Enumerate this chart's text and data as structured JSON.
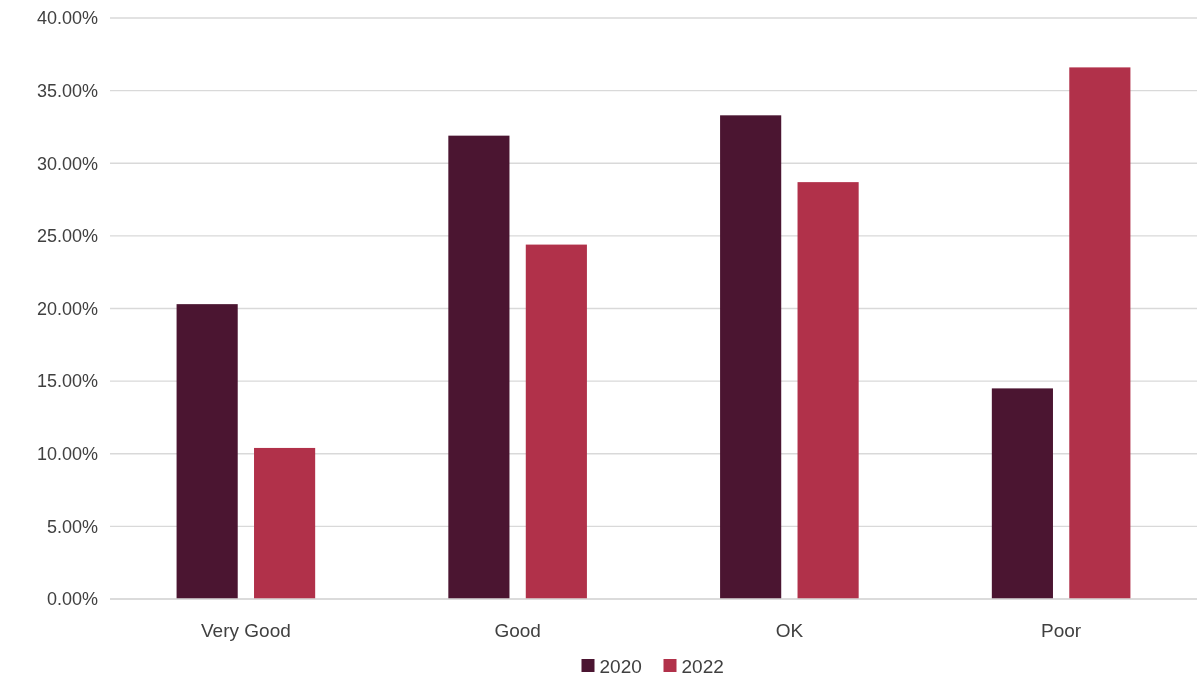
{
  "chart_data": {
    "type": "bar",
    "categories": [
      "Very Good",
      "Good",
      "OK",
      "Poor"
    ],
    "series": [
      {
        "name": "2020",
        "color": "#4b1531",
        "values": [
          20.3,
          31.9,
          33.3,
          14.5
        ]
      },
      {
        "name": "2022",
        "color": "#b1314a",
        "values": [
          10.4,
          24.4,
          28.7,
          36.6
        ]
      }
    ],
    "ylim": [
      0,
      40
    ],
    "yticks": [
      {
        "value": 0,
        "label": "0.00%"
      },
      {
        "value": 5,
        "label": "5.00%"
      },
      {
        "value": 10,
        "label": "10.00%"
      },
      {
        "value": 15,
        "label": "15.00%"
      },
      {
        "value": 20,
        "label": "20.00%"
      },
      {
        "value": 25,
        "label": "25.00%"
      },
      {
        "value": 30,
        "label": "30.00%"
      },
      {
        "value": 35,
        "label": "35.00%"
      },
      {
        "value": 40,
        "label": "40.00%"
      }
    ],
    "grid": "y",
    "legend": "bottom"
  }
}
